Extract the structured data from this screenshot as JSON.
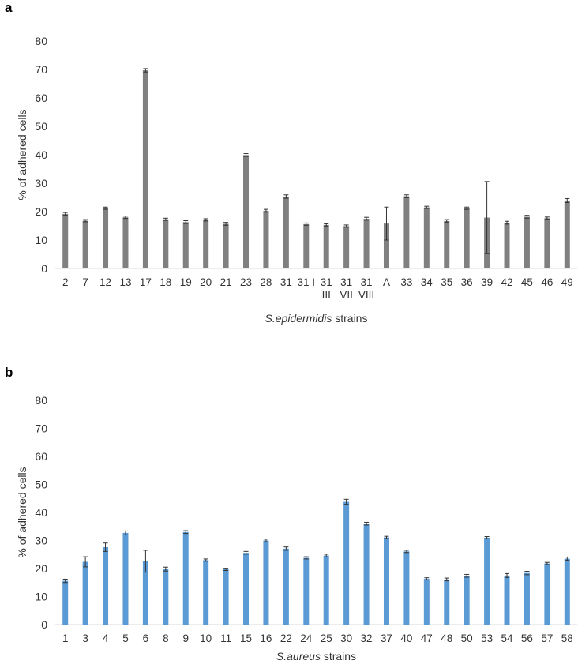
{
  "panels": {
    "a": {
      "letter": "a"
    },
    "b": {
      "letter": "b"
    }
  },
  "chart_data": [
    {
      "type": "bar",
      "title": "",
      "xlabel_italic": "S.epidermidis",
      "xlabel_suffix": " strains",
      "ylabel": "% of adhered cells",
      "ylim": [
        0,
        80
      ],
      "yticks": [
        0,
        10,
        20,
        30,
        40,
        50,
        60,
        70,
        80
      ],
      "grid": false,
      "color": "#808080",
      "categories": [
        [
          "2"
        ],
        [
          "7"
        ],
        [
          "12"
        ],
        [
          "13"
        ],
        [
          "17"
        ],
        [
          "18"
        ],
        [
          "19"
        ],
        [
          "20"
        ],
        [
          "21"
        ],
        [
          "23"
        ],
        [
          "28"
        ],
        [
          "31"
        ],
        [
          "31 I"
        ],
        [
          "31",
          "III"
        ],
        [
          "31",
          "VII"
        ],
        [
          "31",
          "VIII"
        ],
        [
          "A"
        ],
        [
          "33"
        ],
        [
          "34"
        ],
        [
          "35"
        ],
        [
          "36"
        ],
        [
          "39"
        ],
        [
          "42"
        ],
        [
          "45"
        ],
        [
          "46"
        ],
        [
          "49"
        ]
      ],
      "values": [
        19.2,
        16.8,
        21.2,
        18.0,
        69.7,
        17.3,
        16.3,
        17.1,
        15.7,
        39.9,
        20.3,
        25.3,
        15.6,
        15.3,
        14.9,
        17.5,
        15.8,
        25.4,
        21.5,
        16.7,
        21.2,
        17.9,
        16.1,
        18.2,
        17.7,
        23.9
      ],
      "errors": [
        0.5,
        0.4,
        0.4,
        0.4,
        0.6,
        0.4,
        0.5,
        0.4,
        0.5,
        0.5,
        0.5,
        0.6,
        0.4,
        0.4,
        0.4,
        0.5,
        5.8,
        0.5,
        0.4,
        0.5,
        0.4,
        12.7,
        0.5,
        0.5,
        0.4,
        0.7
      ]
    },
    {
      "type": "bar",
      "title": "",
      "xlabel_italic": "S.aureus",
      "xlabel_suffix": " strains",
      "ylabel": "% of adhered cells",
      "ylim": [
        0,
        80
      ],
      "yticks": [
        0,
        10,
        20,
        30,
        40,
        50,
        60,
        70,
        80
      ],
      "grid": false,
      "color": "#5b9bd5",
      "categories": [
        [
          "1"
        ],
        [
          "3"
        ],
        [
          "4"
        ],
        [
          "5"
        ],
        [
          "6"
        ],
        [
          "8"
        ],
        [
          "9"
        ],
        [
          "10"
        ],
        [
          "11"
        ],
        [
          "15"
        ],
        [
          "16"
        ],
        [
          "22"
        ],
        [
          "24"
        ],
        [
          "25"
        ],
        [
          "30"
        ],
        [
          "32"
        ],
        [
          "37"
        ],
        [
          "40"
        ],
        [
          "47"
        ],
        [
          "48"
        ],
        [
          "50"
        ],
        [
          "53"
        ],
        [
          "54"
        ],
        [
          "56"
        ],
        [
          "57"
        ],
        [
          "58"
        ]
      ],
      "values": [
        15.6,
        22.4,
        27.6,
        32.7,
        22.6,
        19.8,
        33.0,
        23.0,
        19.7,
        25.6,
        30.0,
        27.1,
        23.8,
        24.6,
        43.8,
        36.0,
        31.1,
        26.1,
        16.3,
        16.1,
        17.4,
        31.0,
        17.5,
        18.4,
        21.8,
        23.5
      ],
      "errors": [
        0.6,
        1.8,
        1.5,
        0.7,
        3.9,
        0.7,
        0.5,
        0.4,
        0.4,
        0.5,
        0.5,
        0.6,
        0.4,
        0.5,
        0.9,
        0.5,
        0.4,
        0.4,
        0.4,
        0.5,
        0.5,
        0.4,
        0.7,
        0.6,
        0.4,
        0.6
      ]
    }
  ]
}
